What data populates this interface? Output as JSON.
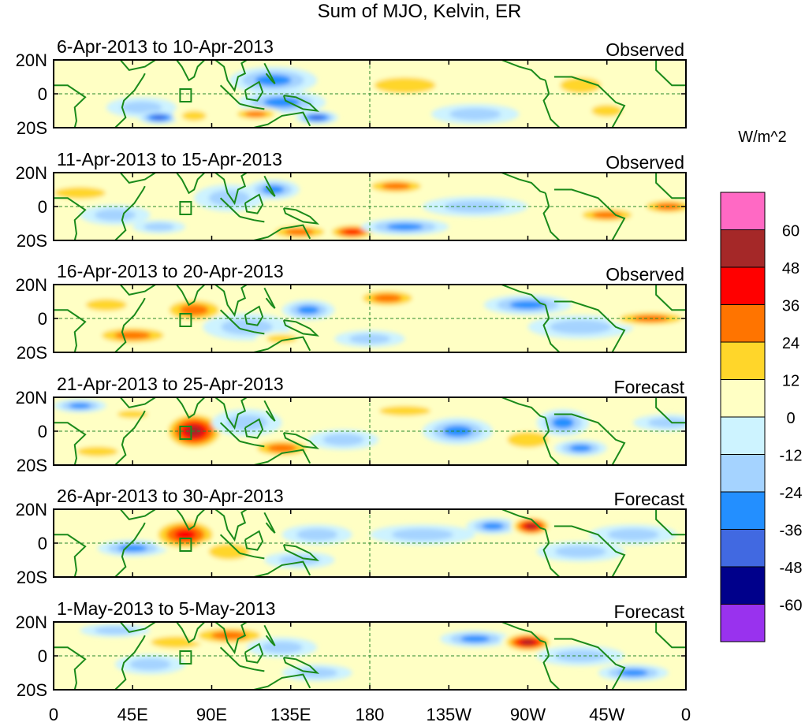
{
  "title": "Sum of MJO, Kelvin, ER",
  "panels": [
    {
      "date_range": "6-Apr-2013 to 10-Apr-2013",
      "status": "Observed"
    },
    {
      "date_range": "11-Apr-2013 to 15-Apr-2013",
      "status": "Observed"
    },
    {
      "date_range": "16-Apr-2013 to 20-Apr-2013",
      "status": "Observed"
    },
    {
      "date_range": "21-Apr-2013 to 25-Apr-2013",
      "status": "Forecast"
    },
    {
      "date_range": "26-Apr-2013 to 30-Apr-2013",
      "status": "Forecast"
    },
    {
      "date_range": "1-May-2013 to 5-May-2013",
      "status": "Forecast"
    }
  ],
  "lat_labels": [
    "20N",
    "0",
    "20S"
  ],
  "lon_labels": [
    "0",
    "45E",
    "90E",
    "135E",
    "180",
    "135W",
    "90W",
    "45W",
    "0"
  ],
  "colorbar": {
    "unit": "W/m^2",
    "colors": [
      "#ff69c4",
      "#a52828",
      "#ff0000",
      "#ff7400",
      "#ffd62a",
      "#ffffc4",
      "#cdf3ff",
      "#a5d3ff",
      "#238fff",
      "#4169e1",
      "#00008b",
      "#9932ee"
    ],
    "labels": [
      "60",
      "48",
      "36",
      "24",
      "12",
      "0",
      "-12",
      "-24",
      "-36",
      "-48",
      "-60"
    ]
  }
}
